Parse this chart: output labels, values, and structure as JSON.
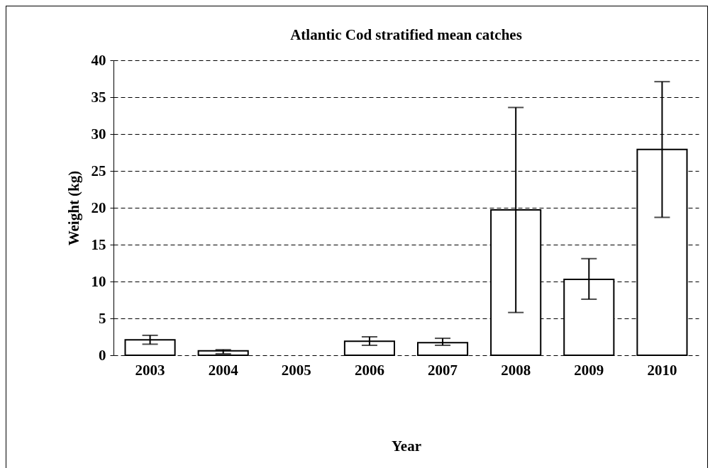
{
  "chart_data": {
    "type": "bar",
    "title": "Atlantic Cod stratified mean catches",
    "xlabel": "Year",
    "ylabel": "Weight (kg)",
    "categories": [
      "2003",
      "2004",
      "2005",
      "2006",
      "2007",
      "2008",
      "2009",
      "2010"
    ],
    "values": [
      2.1,
      0.6,
      null,
      1.9,
      1.7,
      19.7,
      10.3,
      27.9
    ],
    "errors": [
      [
        1.5,
        2.7
      ],
      [
        0.2,
        0.75
      ],
      null,
      [
        1.35,
        2.5
      ],
      [
        1.35,
        2.3
      ],
      [
        5.8,
        33.6
      ],
      [
        7.6,
        13.1
      ],
      [
        18.7,
        37.1
      ]
    ],
    "color": "#ffffff",
    "ylim": [
      0,
      40
    ],
    "yticks": [
      0,
      5,
      10,
      15,
      20,
      25,
      30,
      35,
      40
    ],
    "grid": "y"
  }
}
